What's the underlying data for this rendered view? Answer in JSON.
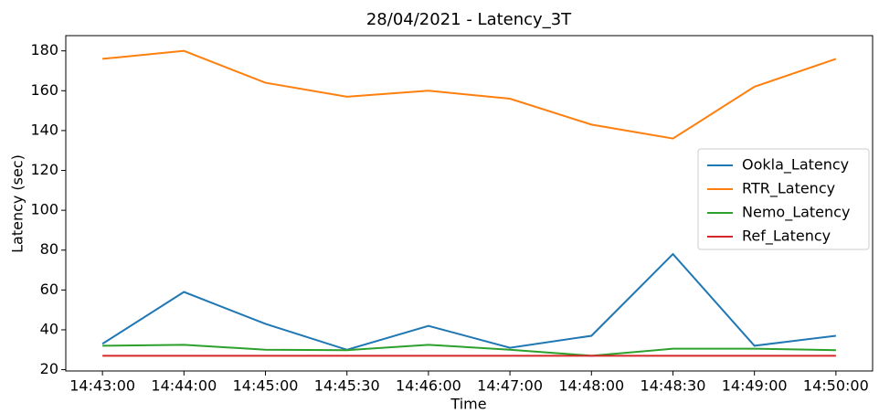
{
  "chart_data": {
    "type": "line",
    "title": "28/04/2021 - Latency_3T",
    "xlabel": "Time",
    "ylabel": "Latency (sec)",
    "categories": [
      "14:43:00",
      "14:44:00",
      "14:45:00",
      "14:45:30",
      "14:46:00",
      "14:47:00",
      "14:48:00",
      "14:48:30",
      "14:49:00",
      "14:50:00"
    ],
    "series": [
      {
        "name": "Ookla_Latency",
        "color": "#1f77b4",
        "values": [
          33,
          59,
          43,
          30,
          42,
          31,
          37,
          78,
          32,
          37
        ]
      },
      {
        "name": "RTR_Latency",
        "color": "#ff7f0e",
        "values": [
          176,
          180,
          164,
          157,
          160,
          156,
          143,
          136,
          162,
          176
        ]
      },
      {
        "name": "Nemo_Latency",
        "color": "#2ca02c",
        "values": [
          32,
          32.5,
          30,
          29.8,
          32.5,
          30,
          27,
          30.5,
          30.5,
          29.8
        ]
      },
      {
        "name": "Ref_Latency",
        "color": "#d62728",
        "values": [
          27,
          27,
          27,
          27,
          27,
          27,
          27,
          27,
          27,
          27
        ]
      }
    ],
    "ylim": [
      19.35,
      187.65
    ],
    "yticks": [
      20,
      40,
      60,
      80,
      100,
      120,
      140,
      160,
      180
    ],
    "legend": "right",
    "grid": false
  }
}
